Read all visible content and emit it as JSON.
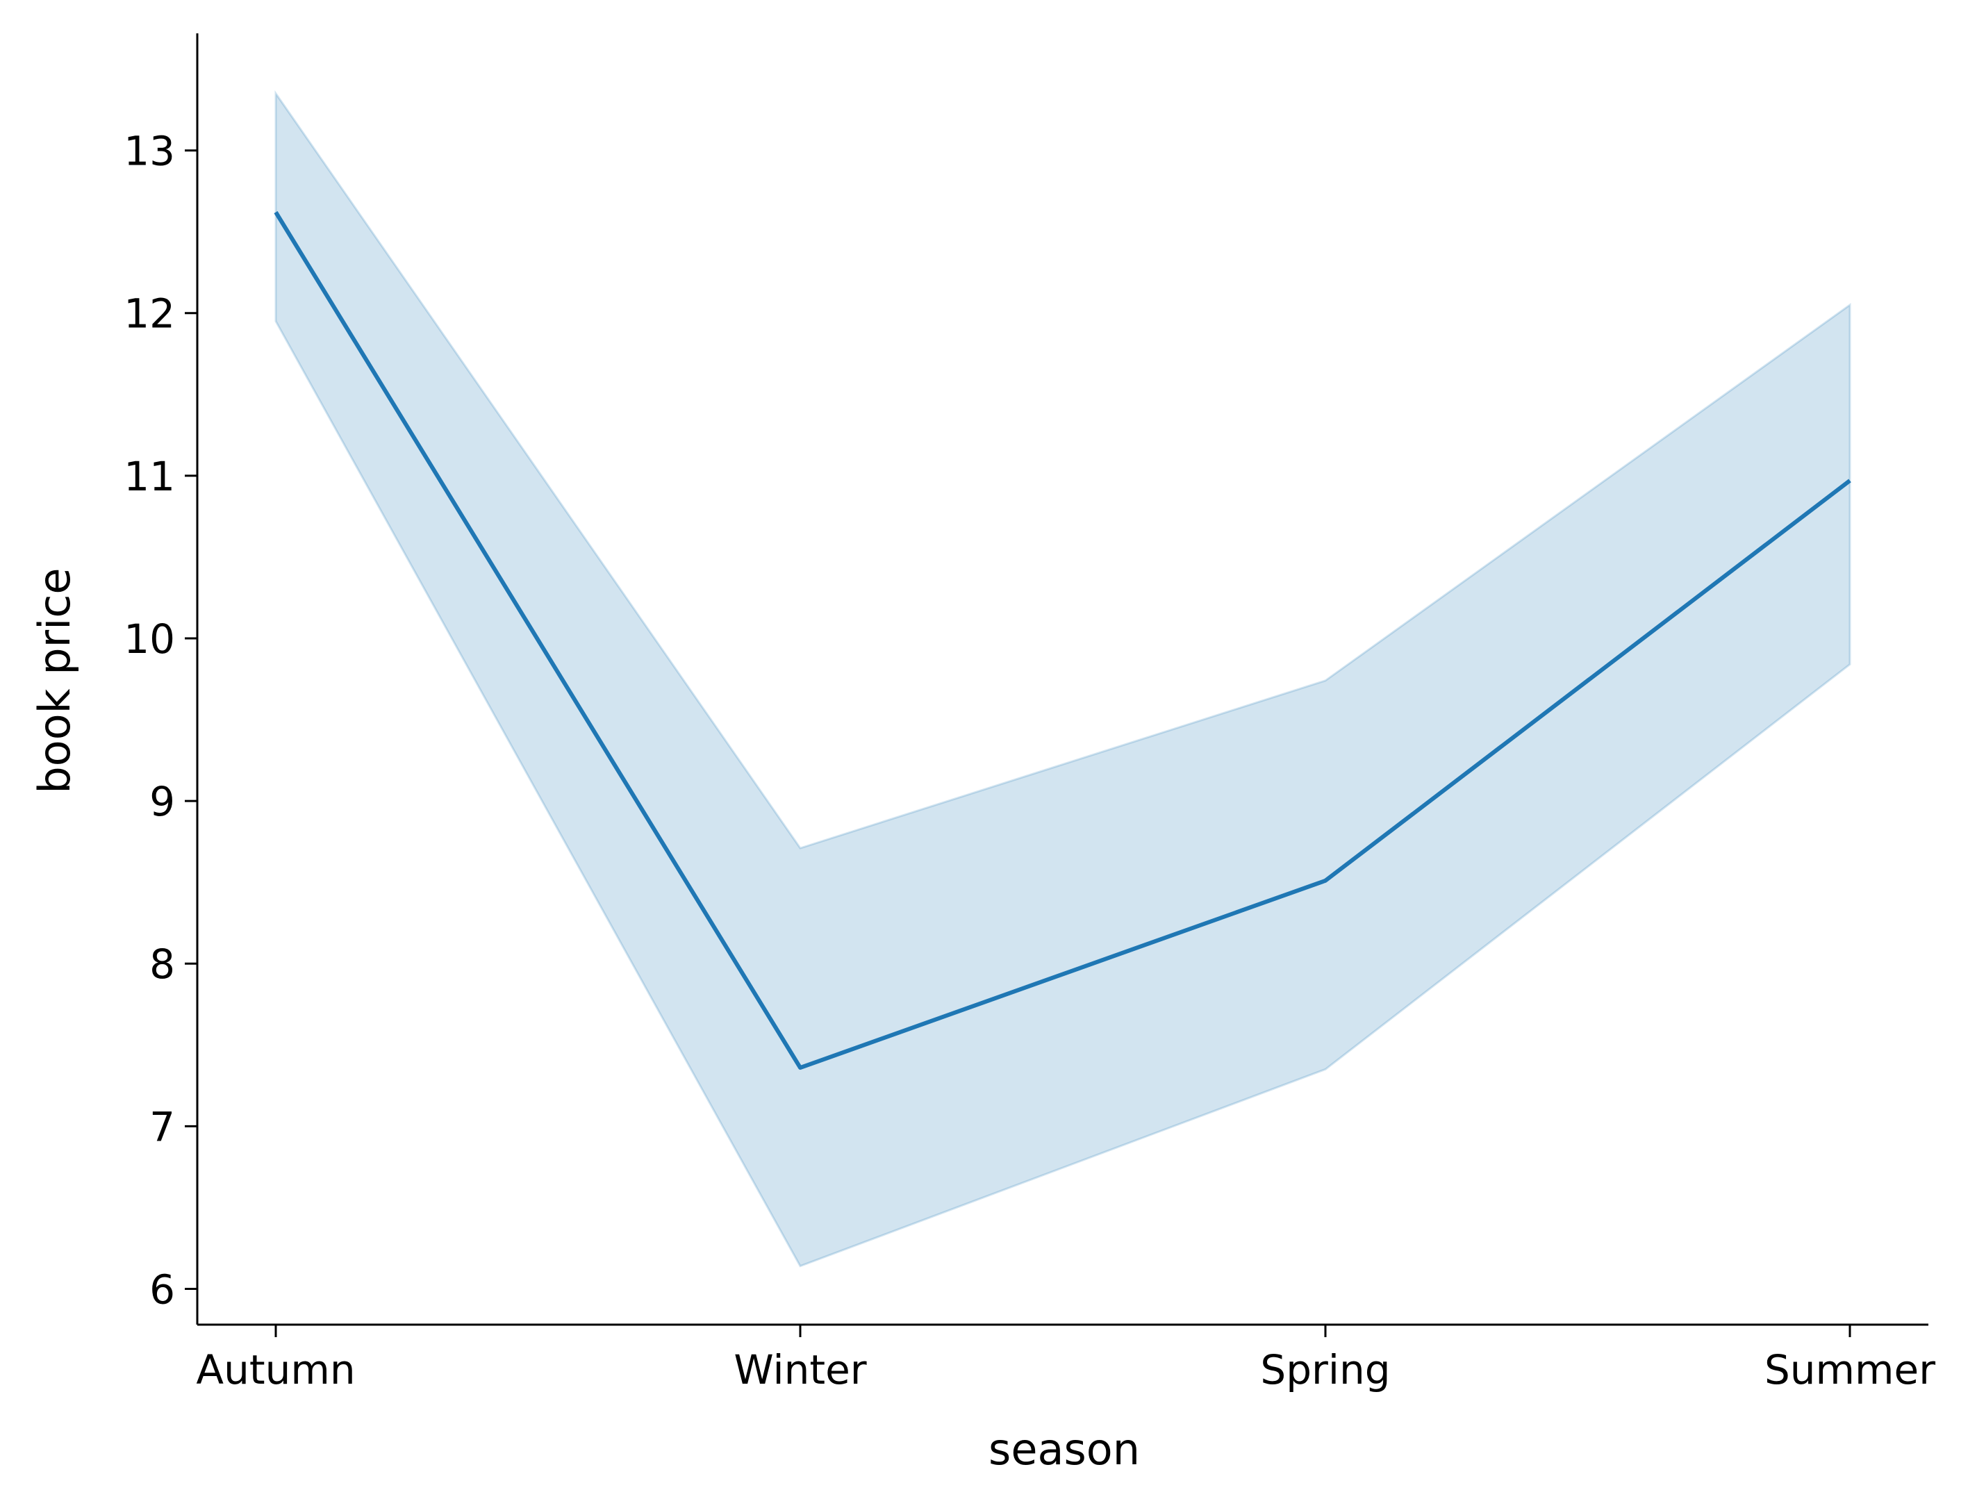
{
  "chart_data": {
    "type": "line",
    "title": "",
    "xlabel": "season",
    "ylabel": "book price",
    "categories": [
      "Autumn",
      "Winter",
      "Spring",
      "Summer"
    ],
    "series": [
      {
        "values": [
          12.62,
          7.36,
          8.51,
          10.97
        ],
        "ci_lower": [
          11.95,
          6.14,
          7.35,
          9.84
        ],
        "ci_upper": [
          13.35,
          8.71,
          9.74,
          12.05
        ],
        "color": "#1f77b4"
      }
    ],
    "ylim": [
      5.78,
      13.72
    ],
    "yticks": [
      6,
      7,
      8,
      9,
      10,
      11,
      12,
      13
    ],
    "ytick_labels": [
      "6",
      "7",
      "8",
      "9",
      "10",
      "11",
      "12",
      "13"
    ],
    "grid": false,
    "legend": "none"
  }
}
